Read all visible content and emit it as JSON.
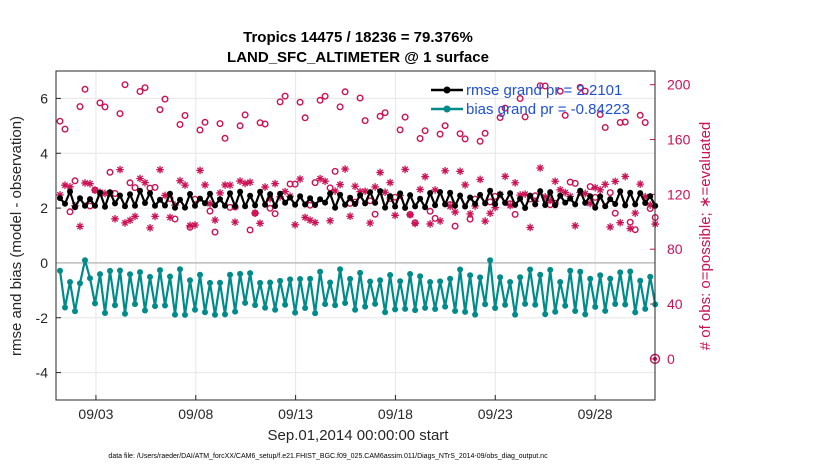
{
  "chart_data": {
    "type": "line",
    "title": "Tropics 14475 / 18236 = 79.376%",
    "subtitle": "LAND_SFC_ALTIMETER @ 1 surface",
    "xlabel": "Sep.01,2014 00:00:00 start",
    "ylabel_left": "rmse and bias (model - observation)",
    "ylabel_right": "# of obs: o=possible; ∗=evaluated",
    "x_tick_labels": [
      "09/03",
      "09/08",
      "09/13",
      "09/18",
      "09/23",
      "09/28"
    ],
    "x_tick_days": [
      3,
      8,
      13,
      18,
      23,
      28
    ],
    "xlim_days": [
      1.0,
      31.0
    ],
    "y_left_ticks": [
      "6",
      "4",
      "2",
      "0",
      "-2",
      "-4"
    ],
    "y_left_tick_values": [
      6,
      4,
      2,
      0,
      -2,
      -4
    ],
    "ylim_left": [
      -5,
      7
    ],
    "y_right_ticks": [
      "200",
      "160",
      "120",
      "80",
      "40",
      "0"
    ],
    "y_right_tick_values": [
      200,
      160,
      120,
      80,
      40,
      0
    ],
    "ylim_right": [
      -30,
      210
    ],
    "grid": true,
    "legend_position": "top-right",
    "series": [
      {
        "name": "rmse grand pr = 2.2101",
        "kind": "rmse",
        "color": "#000000",
        "axis": "left"
      },
      {
        "name": "bias grand pr = -0.84223",
        "kind": "bias",
        "color": "#008b8b",
        "axis": "left"
      },
      {
        "name": "possible",
        "kind": "possible",
        "color": "#cc1155",
        "axis": "right",
        "marker": "o"
      },
      {
        "name": "evaluated",
        "kind": "evaluated",
        "color": "#cc1155",
        "axis": "right",
        "marker": "*"
      }
    ]
  },
  "footer": "data file: /Users/raeder/DAI/ATM_forcXX/CAM6_setup/f.e21.FHIST_BGC.f09_025.CAM6assim.011/Diags_NTrS_2014-09/obs_diag_output.nc",
  "colors": {
    "rmse": "#000000",
    "bias": "#008b8b",
    "obs": "#cc1155",
    "legend_text": "#1f4fd6",
    "grid": "#e6e6e6",
    "zero_line": "#bdbdbd"
  }
}
